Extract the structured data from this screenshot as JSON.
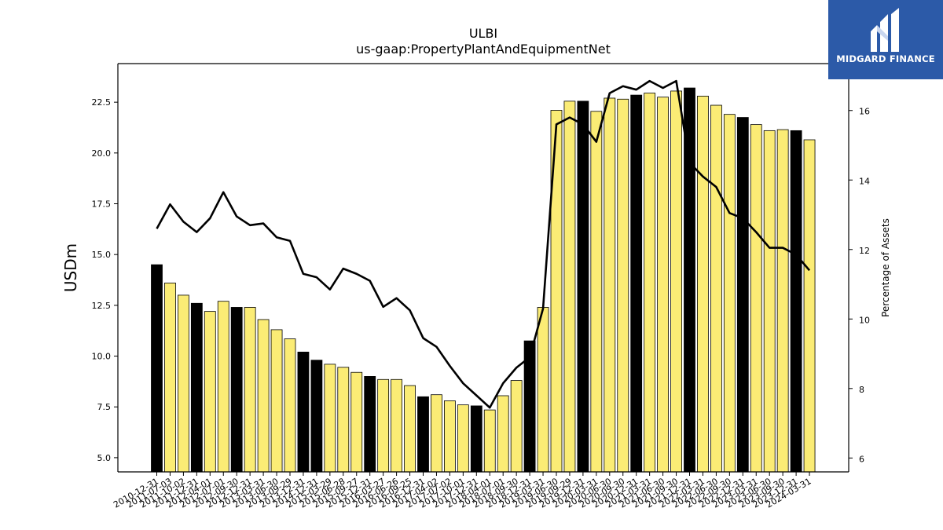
{
  "brand": {
    "name": "MIDGARD FINANCE",
    "background": "#2c5aa8",
    "icon": "midgard-logo-icon"
  },
  "chart_data": {
    "type": "bar",
    "title": "ULBI",
    "subtitle": "us-gaap:PropertyPlantAndEquipmentNet",
    "ylabel": "USDm",
    "ylabel_right": "Percentage of Assets",
    "ylim": [
      4.3,
      24.4
    ],
    "ylim_right": [
      5.6,
      17.35
    ],
    "yticks": [
      5.0,
      7.5,
      10.0,
      12.5,
      15.0,
      17.5,
      20.0,
      22.5
    ],
    "yticks_right": [
      6,
      8,
      10,
      12,
      14,
      16
    ],
    "grid": false,
    "legend": "none",
    "bar_colors": {
      "annual": "#000000",
      "quarterly": "#fbec75"
    },
    "line_color": "#000000",
    "categories": [
      "2010-12-31",
      "2011-07-03",
      "2011-10-02",
      "2011-12-31",
      "2012-04-01",
      "2012-07-01",
      "2012-09-30",
      "2012-12-31",
      "2013-03-31",
      "2013-06-30",
      "2013-09-29",
      "2013-12-31",
      "2014-12-31",
      "2015-03-29",
      "2015-06-28",
      "2015-09-27",
      "2015-12-31",
      "2016-03-27",
      "2016-06-26",
      "2016-09-25",
      "2016-12-31",
      "2017-04-02",
      "2017-07-02",
      "2017-10-01",
      "2017-12-31",
      "2018-04-01",
      "2018-07-01",
      "2018-09-30",
      "2018-12-31",
      "2019-03-31",
      "2019-06-30",
      "2019-09-29",
      "2019-12-31",
      "2020-03-31",
      "2020-06-30",
      "2020-09-30",
      "2020-12-31",
      "2021-03-31",
      "2021-06-30",
      "2021-09-30",
      "2021-12-31",
      "2022-03-31",
      "2022-06-30",
      "2022-09-30",
      "2022-12-31",
      "2023-03-31",
      "2023-06-30",
      "2023-09-30",
      "2023-12-31",
      "2024-03-31"
    ],
    "series": [
      {
        "type": "bar",
        "axis": "left",
        "values": [
          14.5,
          13.6,
          13.0,
          12.6,
          12.2,
          12.7,
          12.4,
          12.4,
          11.8,
          11.3,
          10.85,
          10.2,
          9.8,
          9.6,
          9.45,
          9.2,
          9.0,
          8.85,
          8.85,
          8.55,
          8.0,
          8.1,
          7.8,
          7.6,
          7.55,
          7.35,
          8.05,
          8.8,
          10.75,
          12.4,
          22.1,
          22.55,
          22.55,
          22.05,
          22.7,
          22.65,
          22.85,
          22.95,
          22.75,
          23.05,
          23.2,
          22.8,
          22.35,
          21.9,
          21.75,
          21.4,
          21.1,
          21.15,
          21.1,
          20.65
        ],
        "annual": [
          true,
          false,
          false,
          true,
          false,
          false,
          true,
          false,
          false,
          false,
          false,
          true,
          true,
          false,
          false,
          false,
          true,
          false,
          false,
          false,
          true,
          false,
          false,
          false,
          true,
          false,
          false,
          false,
          true,
          false,
          false,
          false,
          true,
          false,
          false,
          false,
          true,
          false,
          false,
          false,
          true,
          false,
          false,
          false,
          true,
          false,
          false,
          false,
          true,
          false
        ]
      },
      {
        "type": "line",
        "axis": "right",
        "values": [
          12.6,
          13.3,
          12.8,
          12.5,
          12.9,
          13.65,
          12.95,
          12.7,
          12.75,
          12.35,
          12.25,
          11.3,
          11.2,
          10.85,
          11.45,
          11.3,
          11.1,
          10.35,
          10.6,
          10.25,
          9.45,
          9.2,
          8.65,
          8.15,
          7.8,
          7.45,
          8.15,
          8.6,
          8.9,
          10.3,
          15.6,
          15.8,
          15.6,
          15.1,
          16.5,
          16.7,
          16.6,
          16.85,
          16.65,
          16.85,
          14.5,
          14.1,
          13.8,
          13.05,
          12.9,
          12.5,
          12.05,
          12.05,
          11.85,
          11.4
        ]
      }
    ]
  }
}
